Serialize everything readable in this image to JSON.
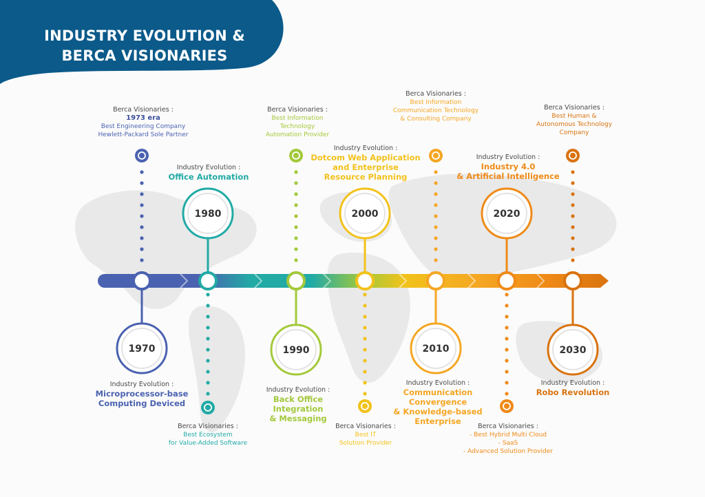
{
  "title": {
    "line1": "INDUSTRY EVOLUTION &",
    "line2": "BERCA VISIONARIES"
  },
  "colors": {
    "navy": "#0b5a8a",
    "c1970": "#4a62b0",
    "c1980": "#22aaa5",
    "c1990": "#a3c93a",
    "c2000": "#f2c21b",
    "c2010": "#f5a623",
    "c2020": "#ef8a17",
    "c2030": "#d9730f",
    "heading": "#4a4a4a"
  },
  "timeline": [
    {
      "year": "1970",
      "evolution": {
        "heading": "Industry Evolution :",
        "lines": [
          "Microprocessor-base",
          "Computing Deviced"
        ]
      },
      "visionary": {
        "heading": "Berca Visionaries :",
        "lines": [
          "1973 era",
          "Best Engineering Company",
          "Hewlett-Packard Sole Partner"
        ]
      }
    },
    {
      "year": "1980",
      "evolution": {
        "heading": "Industry Evolution :",
        "lines": [
          "Office Automation"
        ]
      },
      "visionary": {
        "heading": "Berca Visionaries :",
        "lines": [
          "Best Ecosystem",
          "for Value-Added Software"
        ]
      }
    },
    {
      "year": "1990",
      "evolution": {
        "heading": "Industry Evolution :",
        "lines": [
          "Back Office",
          "Integration",
          "& Messaging"
        ]
      },
      "visionary": {
        "heading": "Berca Visionaries :",
        "lines": [
          "Best Information",
          "Technology",
          "Automation Provider"
        ]
      }
    },
    {
      "year": "2000",
      "evolution": {
        "heading": "Industry Evolution :",
        "lines": [
          "Dotcom Web Application",
          "and Enterprise",
          "Resource Planning"
        ]
      },
      "visionary": {
        "heading": "Berca Visionaries :",
        "lines": [
          "Best IT",
          "Solution Provider"
        ]
      }
    },
    {
      "year": "2010",
      "evolution": {
        "heading": "Industry Evolution :",
        "lines": [
          "Communication",
          "Convergence",
          "& Knowledge-based",
          "Enterprise"
        ]
      },
      "visionary": {
        "heading": "Berca Visionaries :",
        "lines": [
          "Best Information",
          "Communication Technology",
          "& Consulting Company"
        ]
      }
    },
    {
      "year": "2020",
      "evolution": {
        "heading": "Industry Evolution :",
        "lines": [
          "Industry 4.0",
          "& Artificial Intelligence"
        ]
      },
      "visionary": {
        "heading": "Berca Visionaries :",
        "lines": [
          "- Best Hybrid Multi Cloud",
          "- SaaS",
          "- Advanced Solution Provider"
        ]
      }
    },
    {
      "year": "2030",
      "evolution": {
        "heading": "Industry Evolution :",
        "lines": [
          "Robo Revolution"
        ]
      },
      "visionary": {
        "heading": "Berca Visionaries :",
        "lines": [
          "Best Human &",
          "Autonomous Technology",
          "Company"
        ]
      }
    }
  ]
}
